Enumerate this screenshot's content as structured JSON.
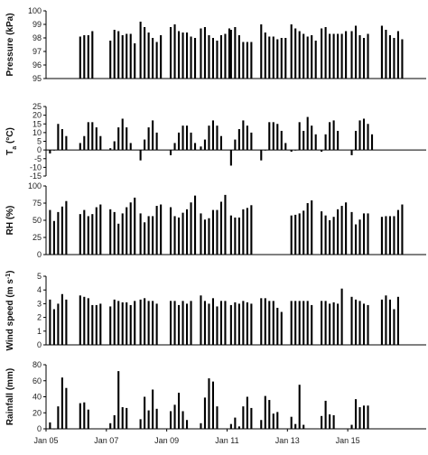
{
  "chart_data": {
    "type": "bar",
    "shared_x": {
      "range_days": [
        0,
        12.6
      ],
      "tick_labels": [
        {
          "day": 0,
          "label": "Jan 05"
        },
        {
          "day": 2,
          "label": "Jan 07"
        },
        {
          "day": 4,
          "label": "Jan 09"
        },
        {
          "day": 6,
          "label": "Jan 11"
        },
        {
          "day": 8,
          "label": "Jan 13"
        },
        {
          "day": 10,
          "label": "Jan 15"
        }
      ]
    },
    "panels": [
      {
        "name": "pressure",
        "ylabel": "Pressure (kPa)",
        "ylim": [
          95,
          100
        ],
        "yticks": [
          95,
          96,
          97,
          98,
          99,
          100
        ],
        "bar_color": "#000000",
        "days": [
          {
            "day": 1,
            "values": [
              98.1,
              98.2,
              98.2,
              98.5
            ]
          },
          {
            "day": 2,
            "values": [
              97.8,
              98.6,
              98.5,
              98.2,
              98.3,
              98.3,
              97.6
            ]
          },
          {
            "day": 3,
            "values": [
              99.2,
              98.8,
              98.4,
              98.0,
              97.7,
              98.2
            ]
          },
          {
            "day": 4,
            "values": [
              98.8,
              99.0,
              98.5,
              98.4,
              98.4,
              98.1,
              98.0
            ]
          },
          {
            "day": 5,
            "values": [
              98.7,
              98.8,
              98.2,
              98.0,
              97.8,
              98.2,
              98.3,
              98.7
            ]
          },
          {
            "day": 6,
            "values": [
              98.6,
              98.8,
              98.2,
              97.7,
              97.7,
              97.7
            ]
          },
          {
            "day": 7,
            "values": [
              99.0,
              98.4,
              98.1,
              98.1,
              97.9,
              98.0,
              98.0
            ]
          },
          {
            "day": 8,
            "values": [
              99.0,
              98.7,
              98.5,
              98.3,
              98.1,
              98.2,
              97.8
            ]
          },
          {
            "day": 9,
            "values": [
              98.7,
              98.8,
              98.3,
              98.3,
              98.3,
              98.3,
              98.5
            ]
          },
          {
            "day": 10,
            "values": [
              98.5,
              98.9,
              98.2,
              98.0,
              98.3
            ]
          },
          {
            "day": 11,
            "values": [
              98.9,
              98.6,
              98.2,
              98.0,
              98.5,
              97.9
            ]
          }
        ]
      },
      {
        "name": "temperature",
        "ylabel": "Ta (°C)",
        "ylabel_main": "T",
        "ylabel_sub": "a",
        "ylabel_unit": " (°C)",
        "ylim": [
          -15,
          25
        ],
        "yticks": [
          -15,
          -10,
          -5,
          0,
          5,
          10,
          15,
          20,
          25
        ],
        "bar_color": "#000000",
        "days": [
          {
            "day": 0,
            "values": [
              -2,
              0,
              15,
              12,
              8
            ]
          },
          {
            "day": 1,
            "values": [
              4,
              8,
              16,
              16,
              13,
              8
            ]
          },
          {
            "day": 2,
            "values": [
              1,
              5,
              13,
              18,
              13,
              4
            ]
          },
          {
            "day": 3,
            "values": [
              -6,
              6,
              13,
              17,
              10
            ]
          },
          {
            "day": 4,
            "values": [
              -3,
              4,
              10,
              14,
              14,
              10,
              4
            ]
          },
          {
            "day": 5,
            "values": [
              2,
              6,
              14,
              17,
              14,
              8
            ]
          },
          {
            "day": 6,
            "values": [
              -9,
              6,
              12,
              17,
              14,
              10
            ]
          },
          {
            "day": 7,
            "values": [
              -6,
              0,
              16,
              16,
              15,
              11,
              4
            ]
          },
          {
            "day": 8,
            "values": [
              -1,
              0,
              16,
              11,
              19,
              14,
              9
            ]
          },
          {
            "day": 9,
            "values": [
              -1,
              9,
              16,
              17,
              11
            ]
          },
          {
            "day": 10,
            "values": [
              -3,
              11,
              17,
              18,
              15,
              9
            ]
          }
        ]
      },
      {
        "name": "rh",
        "ylabel": "RH (%)",
        "ylim": [
          0,
          100
        ],
        "yticks": [
          0,
          25,
          50,
          75,
          100
        ],
        "bar_color": "#000000",
        "days": [
          {
            "day": 0,
            "values": [
              65,
              49,
              62,
              70,
              78
            ]
          },
          {
            "day": 1,
            "values": [
              59,
              65,
              56,
              59,
              69,
              73
            ]
          },
          {
            "day": 2,
            "values": [
              66,
              62,
              45,
              60,
              69,
              76,
              83
            ]
          },
          {
            "day": 3,
            "values": [
              60,
              47,
              56,
              56,
              71,
              73
            ]
          },
          {
            "day": 4,
            "values": [
              69,
              56,
              54,
              61,
              66,
              76,
              86
            ]
          },
          {
            "day": 5,
            "values": [
              60,
              51,
              53,
              65,
              65,
              77,
              87
            ]
          },
          {
            "day": 6,
            "values": [
              57,
              54,
              54,
              66,
              68,
              72
            ]
          },
          {
            "day": 8,
            "values": [
              57,
              58,
              60,
              64,
              75,
              79
            ]
          },
          {
            "day": 9,
            "values": [
              63,
              57,
              50,
              55,
              66,
              71,
              76
            ]
          },
          {
            "day": 10,
            "values": [
              62,
              44,
              51,
              60,
              60
            ]
          },
          {
            "day": 11,
            "values": [
              55,
              56,
              56,
              56,
              65,
              73
            ]
          }
        ]
      },
      {
        "name": "wind_speed",
        "ylabel": "Wind speed (m s-1)",
        "ylabel_main": "Wind speed (m s",
        "ylabel_sup": "-1",
        "ylabel_unit": ")",
        "ylim": [
          0,
          5
        ],
        "yticks": [
          0,
          1,
          2,
          3,
          4,
          5
        ],
        "bar_color": "#000000",
        "days": [
          {
            "day": 0,
            "values": [
              3.3,
              2.6,
              3.0,
              3.7,
              3.3
            ]
          },
          {
            "day": 1,
            "values": [
              3.6,
              3.5,
              3.4,
              2.9,
              2.9,
              3.0
            ]
          },
          {
            "day": 2,
            "values": [
              2.8,
              3.3,
              3.2,
              3.1,
              3.1,
              2.9,
              3.2
            ]
          },
          {
            "day": 3,
            "values": [
              3.3,
              3.4,
              3.2,
              3.2,
              3.0
            ]
          },
          {
            "day": 4,
            "values": [
              3.2,
              3.2,
              2.9,
              3.2,
              3.0,
              3.2
            ]
          },
          {
            "day": 5,
            "values": [
              3.6,
              3.2,
              3.0,
              3.4,
              2.8,
              3.2,
              3.2
            ]
          },
          {
            "day": 6,
            "values": [
              2.9,
              3.1,
              3.0,
              3.2,
              3.1,
              3.0
            ]
          },
          {
            "day": 7,
            "values": [
              3.4,
              3.4,
              3.2,
              3.2,
              2.7,
              2.4
            ]
          },
          {
            "day": 8,
            "values": [
              3.2,
              3.2,
              3.2,
              3.2,
              3.2,
              2.9
            ]
          },
          {
            "day": 9,
            "values": [
              3.2,
              3.2,
              3.0,
              3.1,
              3.0,
              4.1
            ]
          },
          {
            "day": 10,
            "values": [
              3.5,
              3.3,
              3.2,
              3.0,
              2.9
            ]
          },
          {
            "day": 11,
            "values": [
              3.3,
              3.6,
              3.3,
              2.6,
              3.5
            ]
          }
        ]
      },
      {
        "name": "rainfall",
        "ylabel": "Rainfall (mm)",
        "ylim": [
          0,
          80
        ],
        "yticks": [
          0,
          20,
          40,
          60,
          80
        ],
        "bar_color": "#000000",
        "days": [
          {
            "day": 0,
            "values": [
              8,
              0,
              28,
              64,
              51
            ]
          },
          {
            "day": 1,
            "values": [
              32,
              33,
              24
            ]
          },
          {
            "day": 2,
            "values": [
              7,
              17,
              72,
              27,
              26
            ]
          },
          {
            "day": 3,
            "values": [
              12,
              40,
              23,
              49,
              25
            ]
          },
          {
            "day": 4,
            "values": [
              22,
              30,
              45,
              22,
              11
            ]
          },
          {
            "day": 5,
            "values": [
              7,
              39,
              63,
              59,
              28
            ]
          },
          {
            "day": 6,
            "values": [
              6,
              14,
              3,
              28,
              40,
              26
            ]
          },
          {
            "day": 7,
            "values": [
              11,
              41,
              36,
              19,
              21
            ]
          },
          {
            "day": 8,
            "values": [
              15,
              6,
              55,
              5
            ]
          },
          {
            "day": 9,
            "values": [
              16,
              35,
              18,
              17
            ]
          },
          {
            "day": 10,
            "values": [
              5,
              37,
              27,
              29,
              29
            ]
          }
        ]
      }
    ]
  }
}
